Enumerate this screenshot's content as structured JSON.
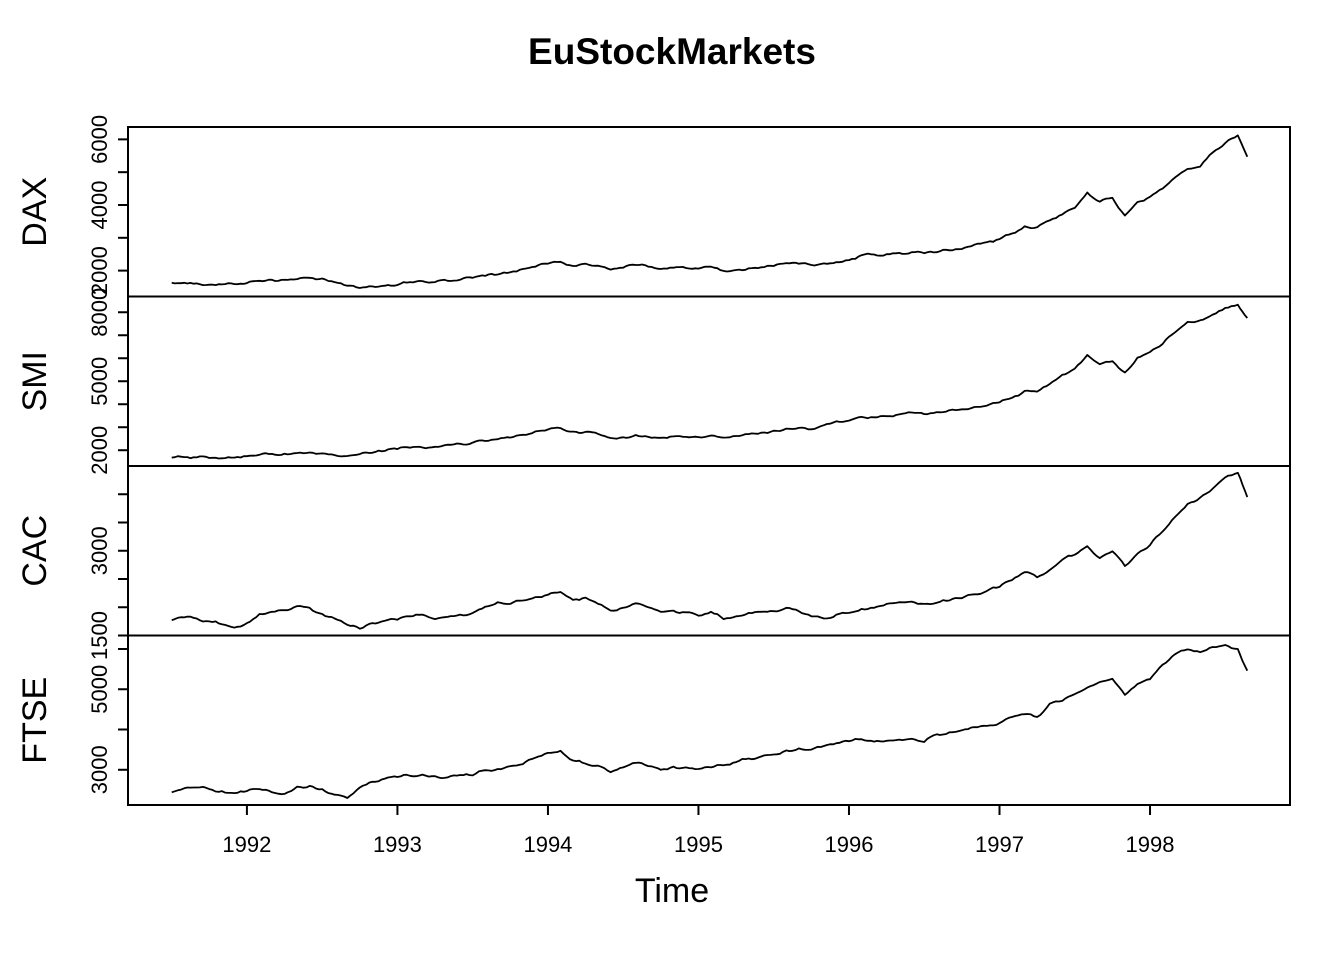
{
  "figure": {
    "title": "EuStockMarkets",
    "xlabel": "Time",
    "background_color": "#ffffff",
    "line_color": "#000000"
  },
  "chart_data": {
    "type": "line",
    "title": "EuStockMarkets",
    "xlabel": "Time",
    "legend": "none",
    "grid": false,
    "x_axis": {
      "range": [
        1991.21,
        1998.93
      ],
      "ticks": [
        1992,
        1993,
        1994,
        1995,
        1996,
        1997,
        1998
      ],
      "tick_labels": [
        "1992",
        "1993",
        "1994",
        "1995",
        "1996",
        "1997",
        "1998"
      ]
    },
    "time": {
      "start": 1991.5,
      "step": 0.0833333,
      "n_regular": 86,
      "final": 1998.646
    },
    "panels": [
      {
        "name": "DAX",
        "ylim": [
          1211,
          6377
        ],
        "yticks": [
          2000,
          3000,
          4000,
          5000,
          6000
        ],
        "ytick_labels": [
          "2000",
          "",
          "4000",
          "",
          "6000"
        ],
        "jitter": 46,
        "values": [
          1630,
          1630,
          1610,
          1570,
          1580,
          1590,
          1620,
          1690,
          1720,
          1720,
          1740,
          1780,
          1760,
          1650,
          1540,
          1470,
          1520,
          1540,
          1560,
          1650,
          1680,
          1650,
          1690,
          1720,
          1780,
          1840,
          1880,
          1950,
          2050,
          2120,
          2210,
          2270,
          2140,
          2210,
          2150,
          2030,
          2090,
          2170,
          2120,
          2050,
          2090,
          2080,
          2060,
          2120,
          1990,
          2020,
          2070,
          2100,
          2140,
          2230,
          2210,
          2170,
          2220,
          2260,
          2320,
          2470,
          2490,
          2500,
          2540,
          2560,
          2530,
          2560,
          2620,
          2660,
          2790,
          2870,
          2960,
          3130,
          3350,
          3320,
          3530,
          3710,
          3910,
          4380,
          4100,
          4220,
          3680,
          4090,
          4250,
          4500,
          4840,
          5100,
          5170,
          5600,
          5890,
          6120,
          5470
        ]
      },
      {
        "name": "SMI",
        "ylim": [
          1314,
          8685
        ],
        "yticks": [
          2000,
          3000,
          4000,
          5000,
          6000,
          7000,
          8000
        ],
        "ytick_labels": [
          "2000",
          "",
          "",
          "5000",
          "",
          "",
          "8000"
        ],
        "jitter": 62,
        "values": [
          1680,
          1700,
          1690,
          1660,
          1650,
          1680,
          1740,
          1800,
          1840,
          1850,
          1880,
          1900,
          1860,
          1790,
          1750,
          1830,
          1890,
          1970,
          2050,
          2110,
          2120,
          2150,
          2240,
          2280,
          2330,
          2400,
          2480,
          2550,
          2670,
          2820,
          2900,
          2960,
          2810,
          2800,
          2710,
          2530,
          2560,
          2660,
          2580,
          2540,
          2600,
          2580,
          2570,
          2640,
          2550,
          2620,
          2700,
          2760,
          2850,
          2940,
          2970,
          2910,
          3090,
          3260,
          3290,
          3450,
          3430,
          3480,
          3560,
          3640,
          3570,
          3660,
          3740,
          3780,
          3880,
          3940,
          4080,
          4280,
          4580,
          4550,
          4880,
          5280,
          5550,
          6140,
          5740,
          5870,
          5380,
          6030,
          6270,
          6620,
          7130,
          7580,
          7650,
          7900,
          8190,
          8330,
          7750
        ]
      },
      {
        "name": "CAC",
        "ylim": [
          1500,
          4500
        ],
        "yticks": [
          1500,
          2000,
          2500,
          3000,
          3500,
          4000
        ],
        "ytick_labels": [
          "1500",
          "",
          "",
          "3000",
          "",
          ""
        ],
        "jitter": 27,
        "values": [
          1770,
          1820,
          1800,
          1750,
          1700,
          1640,
          1720,
          1880,
          1920,
          1950,
          2020,
          1990,
          1880,
          1800,
          1690,
          1620,
          1720,
          1760,
          1780,
          1840,
          1870,
          1790,
          1830,
          1870,
          1900,
          2010,
          2090,
          2060,
          2120,
          2180,
          2220,
          2270,
          2130,
          2170,
          2060,
          1940,
          1990,
          2070,
          2000,
          1920,
          1940,
          1910,
          1850,
          1920,
          1790,
          1840,
          1900,
          1920,
          1930,
          1990,
          1930,
          1840,
          1800,
          1870,
          1900,
          1970,
          1990,
          2060,
          2090,
          2100,
          2060,
          2080,
          2120,
          2160,
          2230,
          2290,
          2360,
          2480,
          2620,
          2530,
          2660,
          2840,
          2930,
          3080,
          2870,
          2990,
          2730,
          2950,
          3100,
          3340,
          3600,
          3830,
          3940,
          4100,
          4300,
          4380,
          3950
        ]
      },
      {
        "name": "FTSE",
        "ylim": [
          2125,
          6335
        ],
        "yticks": [
          3000,
          4000,
          5000,
          6000
        ],
        "ytick_labels": [
          "3000",
          "",
          "5000",
          ""
        ],
        "jitter": 37,
        "values": [
          2440,
          2540,
          2560,
          2520,
          2470,
          2420,
          2470,
          2520,
          2440,
          2400,
          2580,
          2600,
          2520,
          2380,
          2300,
          2560,
          2700,
          2780,
          2820,
          2850,
          2880,
          2840,
          2810,
          2870,
          2860,
          2990,
          3020,
          3090,
          3140,
          3300,
          3420,
          3470,
          3230,
          3150,
          3100,
          2940,
          3060,
          3170,
          3090,
          3000,
          3080,
          3060,
          3020,
          3060,
          3110,
          3190,
          3280,
          3330,
          3380,
          3480,
          3530,
          3500,
          3590,
          3660,
          3710,
          3760,
          3700,
          3720,
          3750,
          3770,
          3690,
          3880,
          3930,
          3980,
          4060,
          4090,
          4160,
          4310,
          4380,
          4310,
          4640,
          4710,
          4880,
          5040,
          5180,
          5260,
          4860,
          5130,
          5250,
          5610,
          5870,
          5990,
          5920,
          6050,
          6100,
          6000,
          5460
        ]
      }
    ]
  }
}
